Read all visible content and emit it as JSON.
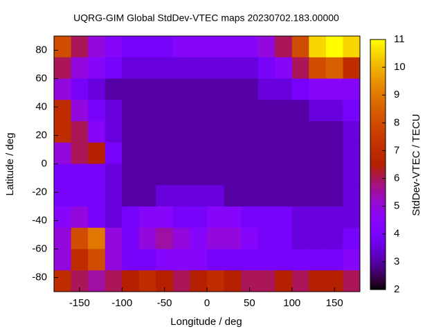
{
  "chart_data": {
    "type": "heatmap",
    "title": "UQRG-GIM Global StdDev-VTEC maps 20230702.183.00000",
    "x_label": "Longitude / deg",
    "y_label": "Latitude / deg",
    "colorbar_label": "StdDev-VTEC / TECU",
    "x": [
      -170,
      -150,
      -130,
      -110,
      -90,
      -70,
      -50,
      -30,
      -10,
      10,
      30,
      50,
      70,
      90,
      110,
      130,
      150,
      170
    ],
    "y": [
      82.5,
      67.5,
      52.5,
      37.5,
      22.5,
      7.5,
      -7.5,
      -22.5,
      -37.5,
      -52.5,
      -67.5,
      -82.5
    ],
    "z": [
      [
        8,
        6,
        5,
        4.5,
        4,
        4,
        4,
        4.5,
        4.5,
        4.5,
        4.5,
        4.5,
        5,
        6,
        8,
        10.5,
        11,
        10.5
      ],
      [
        6,
        5,
        4.5,
        4,
        3.5,
        3.5,
        3.5,
        3.5,
        3.5,
        3.5,
        3.5,
        3.5,
        4,
        4.5,
        6,
        8,
        8.5,
        7
      ],
      [
        5,
        4,
        3.5,
        3,
        3,
        3,
        3,
        3,
        3,
        3,
        3,
        3,
        3.5,
        3.5,
        4,
        4.5,
        4.5,
        4.5
      ],
      [
        7,
        5,
        4,
        3.5,
        3,
        3,
        3,
        3,
        3,
        3,
        3,
        3,
        3,
        3,
        3,
        3.5,
        3.5,
        4
      ],
      [
        7,
        6,
        4.5,
        3.5,
        3,
        3,
        3,
        3,
        3,
        3,
        3,
        3,
        3,
        3,
        3,
        3,
        3,
        3.5
      ],
      [
        5,
        6,
        6.5,
        4,
        3,
        3,
        3,
        3,
        3,
        3,
        3,
        3,
        3,
        3,
        3,
        3,
        3,
        3.5
      ],
      [
        4,
        4,
        4,
        3.5,
        3,
        3,
        3,
        3,
        3,
        3,
        3,
        3,
        3,
        3,
        3,
        3,
        3,
        3.5
      ],
      [
        4,
        4,
        4,
        3.5,
        3,
        3,
        3.5,
        3.5,
        3.5,
        3.5,
        3,
        3,
        3,
        3,
        3,
        3,
        3,
        3.5
      ],
      [
        4.5,
        5,
        4,
        3.5,
        4,
        4.5,
        4.5,
        4,
        4,
        4.5,
        4.5,
        4,
        4,
        4,
        3.5,
        3.5,
        3.5,
        3.5
      ],
      [
        5,
        8,
        9,
        5,
        4,
        5,
        5.5,
        5,
        4.5,
        5,
        5,
        4.5,
        4,
        4,
        3.5,
        3.5,
        3.5,
        4
      ],
      [
        5,
        7,
        8,
        5,
        4,
        4,
        4.5,
        4.5,
        4.5,
        4,
        4,
        4,
        4,
        4,
        4,
        4,
        4,
        4.5
      ],
      [
        7,
        6,
        5.5,
        6,
        6.5,
        7,
        6.5,
        6,
        6.5,
        7,
        6.5,
        6,
        6,
        6.5,
        6,
        6.5,
        6.5,
        6
      ]
    ],
    "xlim": [
      -180,
      180
    ],
    "ylim": [
      -90,
      90
    ],
    "xticks": [
      -150,
      -100,
      -50,
      0,
      50,
      100,
      150
    ],
    "yticks": [
      -80,
      -60,
      -40,
      -20,
      0,
      20,
      40,
      60,
      80
    ],
    "zlim": [
      2,
      11
    ],
    "zticks": [
      2,
      3,
      4,
      5,
      6,
      7,
      8,
      9,
      10,
      11
    ]
  }
}
